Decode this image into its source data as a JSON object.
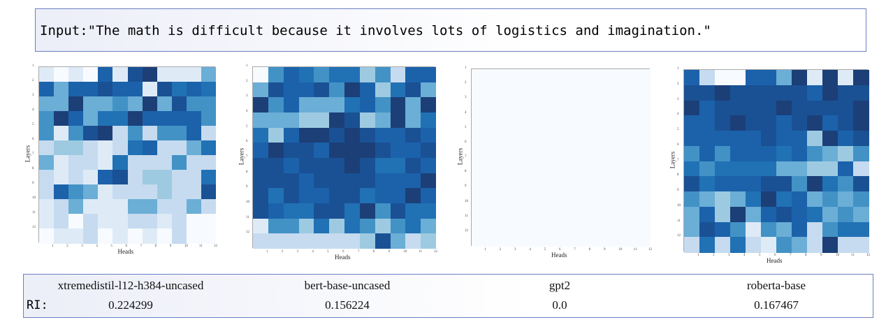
{
  "input": {
    "text": "Input:\"The math is difficult because it involves lots of logistics and imagination.\""
  },
  "ri_label": "RI:",
  "colormap": [
    "#f7fbff",
    "#deebf7",
    "#c6dbef",
    "#9ecae1",
    "#6baed6",
    "#4292c6",
    "#2171b5",
    "#1b62ab",
    "#1a5194",
    "#1c3f78"
  ],
  "chart_data": [
    {
      "type": "heatmap",
      "model": "xtremedistil-l12-h384-uncased",
      "ri": "0.224299",
      "xlabel": "Heads",
      "ylabel": "Layers",
      "xticks": [
        "1",
        "2",
        "3",
        "4",
        "5",
        "6",
        "7",
        "8",
        "9",
        "10",
        "11",
        "12"
      ],
      "yticks": [
        "1",
        "2",
        "3",
        "4",
        "5",
        "6",
        "7",
        "8",
        "9",
        "10",
        "11",
        "12"
      ],
      "value_scale": "relative intensity 0 (light) - 9 (dark)",
      "values": [
        [
          1,
          0,
          1,
          0,
          7,
          1,
          8,
          9,
          1,
          1,
          1,
          4
        ],
        [
          7,
          4,
          7,
          7,
          8,
          7,
          7,
          1,
          8,
          6,
          7,
          6
        ],
        [
          4,
          4,
          9,
          4,
          4,
          5,
          4,
          9,
          4,
          8,
          5,
          5
        ],
        [
          5,
          9,
          7,
          4,
          6,
          6,
          9,
          7,
          7,
          7,
          7,
          5
        ],
        [
          5,
          1,
          5,
          8,
          9,
          2,
          5,
          2,
          5,
          5,
          7,
          2
        ],
        [
          2,
          3,
          3,
          2,
          1,
          2,
          6,
          7,
          2,
          2,
          4,
          6
        ],
        [
          4,
          1,
          2,
          2,
          1,
          6,
          2,
          2,
          2,
          5,
          2,
          2
        ],
        [
          2,
          1,
          2,
          1,
          7,
          8,
          2,
          3,
          3,
          2,
          2,
          6
        ],
        [
          2,
          7,
          5,
          4,
          1,
          2,
          2,
          2,
          3,
          2,
          2,
          8
        ],
        [
          1,
          2,
          4,
          1,
          1,
          1,
          4,
          4,
          2,
          2,
          4,
          2
        ],
        [
          1,
          2,
          0,
          2,
          1,
          1,
          2,
          2,
          1,
          2,
          0,
          0
        ],
        [
          0,
          1,
          1,
          2,
          0,
          1,
          0,
          1,
          0,
          2,
          0,
          0
        ]
      ]
    },
    {
      "type": "heatmap",
      "model": "bert-base-uncased",
      "ri": "0.156224",
      "xlabel": "Heads",
      "ylabel": "Layers",
      "xticks": [
        "1",
        "2",
        "3",
        "4",
        "5",
        "6",
        "7",
        "8",
        "9",
        "10",
        "11",
        "12"
      ],
      "yticks": [
        "1",
        "2",
        "3",
        "4",
        "5",
        "6",
        "7",
        "8",
        "9",
        "10",
        "11",
        "12"
      ],
      "value_scale": "relative intensity 0 (light) - 9 (dark)",
      "values": [
        [
          0,
          5,
          7,
          6,
          5,
          6,
          6,
          3,
          5,
          2,
          7,
          7
        ],
        [
          4,
          8,
          7,
          7,
          8,
          5,
          9,
          7,
          3,
          6,
          8,
          4
        ],
        [
          9,
          5,
          7,
          4,
          4,
          4,
          6,
          7,
          5,
          9,
          4,
          9
        ],
        [
          4,
          4,
          4,
          3,
          3,
          9,
          8,
          3,
          4,
          9,
          4,
          6
        ],
        [
          6,
          3,
          7,
          9,
          9,
          8,
          9,
          8,
          7,
          7,
          8,
          7
        ],
        [
          7,
          9,
          8,
          8,
          7,
          9,
          9,
          9,
          8,
          7,
          7,
          8
        ],
        [
          8,
          8,
          7,
          8,
          8,
          8,
          9,
          8,
          6,
          6,
          8,
          7
        ],
        [
          8,
          8,
          8,
          7,
          8,
          8,
          8,
          8,
          7,
          7,
          7,
          9
        ],
        [
          8,
          6,
          8,
          7,
          7,
          8,
          8,
          6,
          7,
          7,
          9,
          7
        ],
        [
          8,
          7,
          6,
          6,
          8,
          8,
          6,
          9,
          5,
          8,
          6,
          6
        ],
        [
          1,
          5,
          5,
          3,
          6,
          3,
          6,
          5,
          3,
          5,
          6,
          4
        ],
        [
          2,
          2,
          2,
          2,
          2,
          2,
          2,
          3,
          8,
          4,
          2,
          3
        ]
      ]
    },
    {
      "type": "heatmap",
      "model": "gpt2",
      "ri": "0.0",
      "xlabel": "Heads",
      "ylabel": "Layers",
      "xticks": [
        "1",
        "2",
        "3",
        "4",
        "5",
        "6",
        "7",
        "8",
        "9",
        "10",
        "11",
        "12"
      ],
      "yticks": [
        "1",
        "2",
        "3",
        "4",
        "5",
        "6",
        "7",
        "8",
        "9",
        "10",
        "11",
        "12"
      ],
      "value_scale": "relative intensity 0 (light) - 9 (dark)",
      "values": [
        [
          0,
          0,
          0,
          0,
          0,
          0,
          0,
          0,
          0,
          0,
          0,
          0
        ],
        [
          0,
          0,
          0,
          0,
          0,
          0,
          0,
          0,
          0,
          0,
          0,
          0
        ],
        [
          0,
          0,
          0,
          0,
          0,
          0,
          0,
          0,
          0,
          0,
          0,
          0
        ],
        [
          0,
          0,
          0,
          0,
          0,
          0,
          0,
          0,
          0,
          0,
          0,
          0
        ],
        [
          0,
          0,
          0,
          0,
          0,
          0,
          0,
          0,
          0,
          0,
          0,
          0
        ],
        [
          0,
          0,
          0,
          0,
          0,
          0,
          0,
          0,
          0,
          0,
          0,
          0
        ],
        [
          0,
          0,
          0,
          0,
          0,
          0,
          0,
          0,
          0,
          0,
          0,
          0
        ],
        [
          0,
          0,
          0,
          0,
          0,
          0,
          0,
          0,
          0,
          0,
          0,
          0
        ],
        [
          0,
          0,
          0,
          0,
          0,
          0,
          0,
          0,
          0,
          0,
          0,
          0
        ],
        [
          0,
          0,
          0,
          0,
          0,
          0,
          0,
          0,
          0,
          0,
          0,
          0
        ],
        [
          0,
          0,
          0,
          0,
          0,
          0,
          0,
          0,
          0,
          0,
          0,
          0
        ],
        [
          0,
          0,
          0,
          0,
          0,
          0,
          0,
          0,
          0,
          0,
          0,
          0
        ]
      ]
    },
    {
      "type": "heatmap",
      "model": "roberta-base",
      "ri": "0.167467",
      "xlabel": "Heads",
      "ylabel": "Layers",
      "xticks": [
        "1",
        "2",
        "3",
        "4",
        "5",
        "6",
        "7",
        "8",
        "9",
        "10",
        "11",
        "12"
      ],
      "yticks": [
        "1",
        "2",
        "3",
        "4",
        "5",
        "6",
        "7",
        "8",
        "9",
        "10",
        "11",
        "12"
      ],
      "value_scale": "relative intensity 0 (light) - 9 (dark)",
      "values": [
        [
          7,
          2,
          0,
          0,
          7,
          7,
          4,
          9,
          1,
          9,
          1,
          9
        ],
        [
          8,
          8,
          9,
          8,
          8,
          8,
          8,
          8,
          7,
          9,
          8,
          8
        ],
        [
          9,
          7,
          8,
          8,
          8,
          8,
          9,
          8,
          8,
          8,
          8,
          9
        ],
        [
          7,
          7,
          8,
          9,
          8,
          8,
          7,
          8,
          9,
          7,
          8,
          9
        ],
        [
          7,
          7,
          7,
          7,
          7,
          8,
          7,
          7,
          3,
          9,
          7,
          8
        ],
        [
          5,
          7,
          5,
          7,
          7,
          7,
          6,
          7,
          5,
          4,
          3,
          5
        ],
        [
          6,
          5,
          6,
          6,
          6,
          6,
          4,
          4,
          3,
          3,
          7,
          2
        ],
        [
          8,
          6,
          7,
          7,
          7,
          8,
          8,
          5,
          9,
          6,
          5,
          8
        ],
        [
          5,
          4,
          3,
          4,
          6,
          9,
          6,
          7,
          4,
          5,
          4,
          5
        ],
        [
          4,
          7,
          3,
          9,
          4,
          7,
          8,
          7,
          6,
          4,
          5,
          4
        ],
        [
          4,
          8,
          7,
          5,
          1,
          5,
          4,
          7,
          2,
          5,
          6,
          6
        ],
        [
          2,
          6,
          2,
          6,
          2,
          1,
          5,
          4,
          2,
          9,
          2,
          2
        ]
      ]
    }
  ]
}
